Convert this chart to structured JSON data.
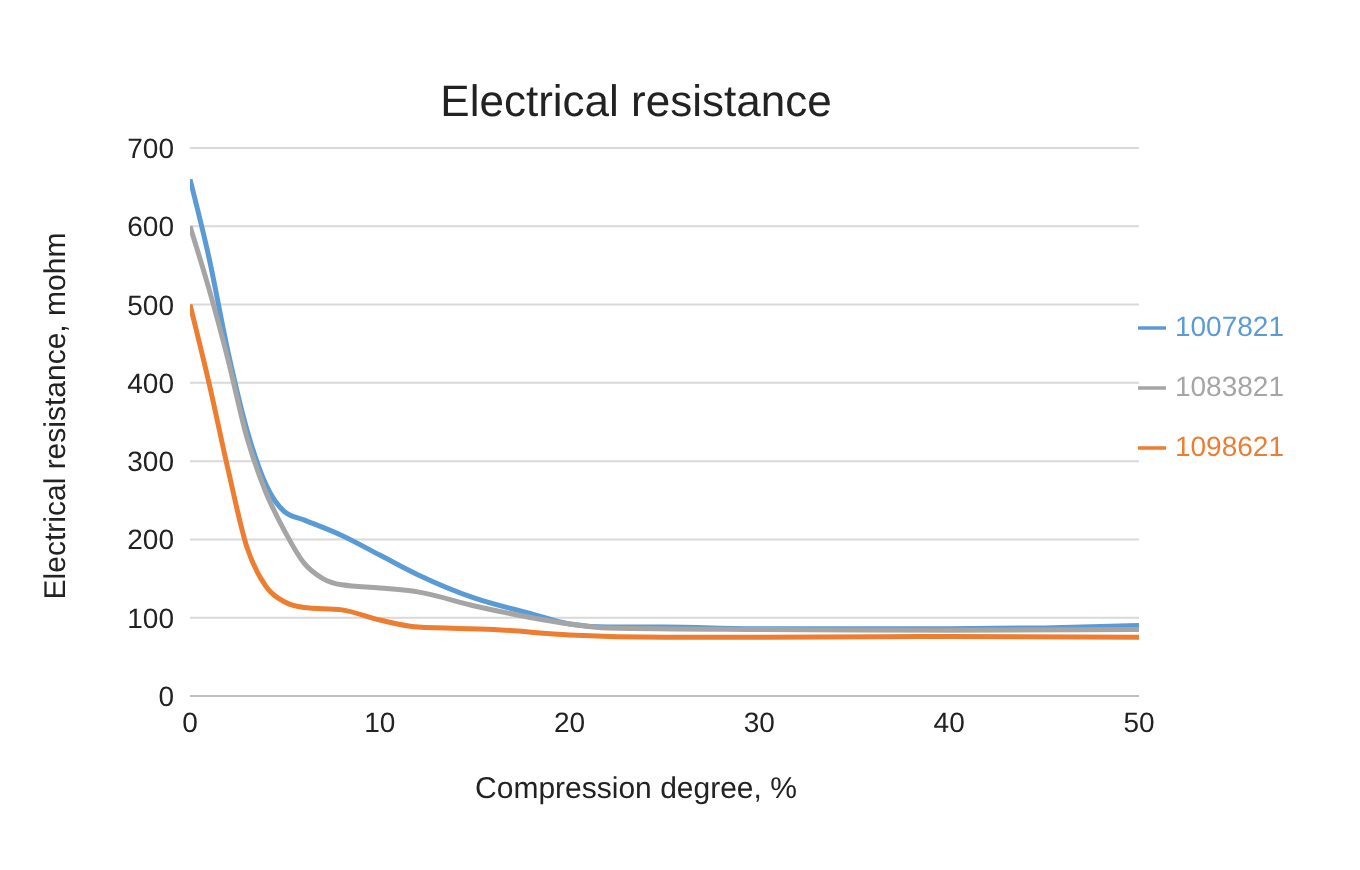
{
  "chart_data": {
    "type": "line",
    "title": "Electrical resistance",
    "xlabel": "Compression degree, %",
    "ylabel": "Electrical resistance, mohm",
    "xlim": [
      0,
      50
    ],
    "xticks": [
      0,
      10,
      20,
      30,
      40,
      50
    ],
    "ylim": [
      0,
      700
    ],
    "yticks": [
      0,
      100,
      200,
      300,
      400,
      500,
      600,
      700
    ],
    "grid": "y",
    "legend": "right",
    "marker": "none",
    "line_style": "solid",
    "series": [
      {
        "name": "1098621",
        "color": "#ed7d31",
        "x": [
          0,
          1,
          2,
          3,
          4,
          5,
          6,
          8,
          10,
          12,
          16,
          20,
          25,
          30,
          40,
          50
        ],
        "values": [
          500,
          400,
          290,
          190,
          140,
          120,
          113,
          110,
          97,
          88,
          85,
          78,
          75,
          75,
          76,
          75
        ]
      },
      {
        "name": "1007821",
        "color": "#5b9bd5",
        "x": [
          0,
          1,
          2,
          3,
          4,
          5,
          6,
          8,
          10,
          12,
          15,
          18,
          20,
          22,
          25,
          30,
          40,
          45,
          50
        ],
        "values": [
          660,
          560,
          440,
          340,
          270,
          235,
          225,
          205,
          180,
          155,
          125,
          105,
          92,
          88,
          88,
          86,
          86,
          87,
          90
        ]
      },
      {
        "name": "1083821",
        "color": "#a5a5a5",
        "x": [
          0,
          1,
          2,
          3,
          4,
          5,
          6,
          7,
          8,
          10,
          12,
          15,
          18,
          20,
          22,
          30,
          40,
          50
        ],
        "values": [
          600,
          520,
          430,
          330,
          260,
          210,
          170,
          150,
          142,
          138,
          133,
          115,
          100,
          92,
          87,
          85,
          84,
          85
        ]
      }
    ]
  }
}
